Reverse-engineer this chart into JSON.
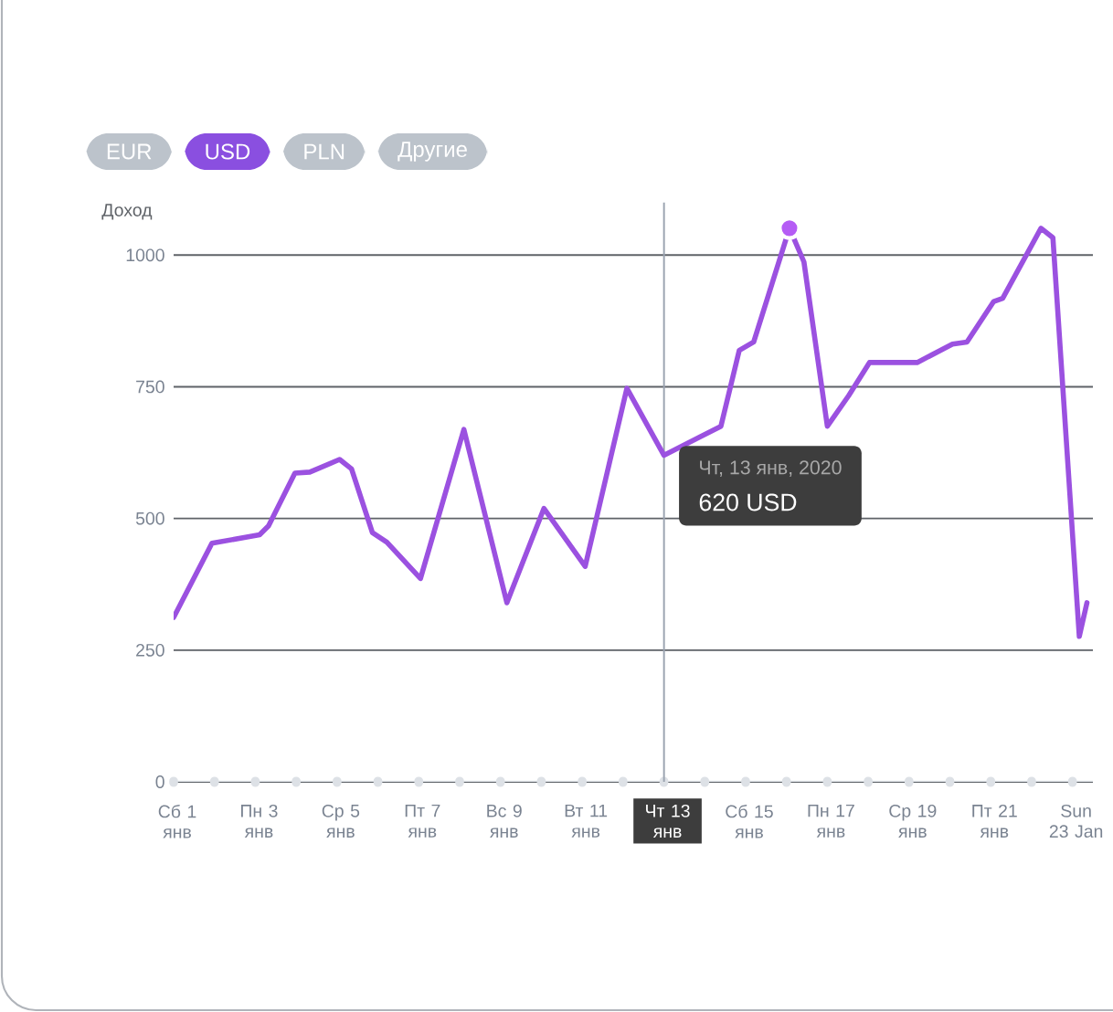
{
  "chart_data": {
    "type": "line",
    "ylabel": "Доход",
    "annotations": [
      "EUR",
      "USD",
      "PLN",
      "Другие",
      {
        "text": "Чт, 13 янв, 2020",
        "x": "2020-01-13",
        "y": 620
      },
      {
        "text": "620 USD",
        "x": "2020-01-13",
        "y": 620
      }
    ],
    "series": [
      {
        "color": "#9b51e0",
        "x": [
          "2020-01-01T00:00",
          "2020-01-01T22:30",
          "2020-01-03T02:30",
          "2020-01-03T07:45",
          "2020-01-03T23:15",
          "2020-01-04T08:00",
          "2020-01-05T01:30",
          "2020-01-05T08:30",
          "2020-01-05T20:45",
          "2020-01-06T05:15",
          "2020-01-07T01:00",
          "2020-01-08T02:30",
          "2020-01-09T03:45",
          "2020-01-10T01:30",
          "2020-01-11T01:45",
          "2020-01-12T02:15",
          "2020-01-13T00:00",
          "2020-01-14T09:30",
          "2020-01-14T20:15",
          "2020-01-15T04:45",
          "2020-01-16T01:45",
          "2020-01-16T10:15",
          "2020-01-17T00:00",
          "2020-01-17T12:30",
          "2020-01-18T00:45",
          "2020-01-19T04:45",
          "2020-01-20T01:30",
          "2020-01-20T10:00",
          "2020-01-21T01:45",
          "2020-01-21T07:00",
          "2020-01-22T05:30",
          "2020-01-22T12:30",
          "2020-01-23T04:00",
          "2020-01-23T08:30"
        ],
        "values": [
          312,
          453,
          469,
          486,
          586,
          588,
          612,
          594,
          473,
          455,
          386,
          669,
          340,
          519,
          409,
          747,
          620,
          675,
          819,
          835,
          1051,
          987,
          675,
          733,
          796,
          796,
          831,
          835,
          912,
          918,
          1051,
          1033,
          276,
          340
        ]
      },
      {
        "type": "scatter",
        "color": "#b55cf5",
        "x": [
          "2020-01-16T01:45"
        ],
        "values": [
          1051
        ]
      }
    ],
    "xlim": [
      "2020-01-01",
      "2020-01-23T12:00"
    ],
    "ylim": [
      0,
      1100
    ],
    "xticks": [
      {
        "value": "2020-01-01",
        "label": "Сб 1 янв"
      },
      {
        "value": "2020-01-02",
        "label": null
      },
      {
        "value": "2020-01-03",
        "label": "Пн 3 янв"
      },
      {
        "value": "2020-01-04",
        "label": null
      },
      {
        "value": "2020-01-05",
        "label": "Ср 5 янв"
      },
      {
        "value": "2020-01-06",
        "label": null
      },
      {
        "value": "2020-01-07",
        "label": "Пт 7 янв"
      },
      {
        "value": "2020-01-08",
        "label": null
      },
      {
        "value": "2020-01-09",
        "label": "Вс 9 янв"
      },
      {
        "value": "2020-01-10",
        "label": null
      },
      {
        "value": "2020-01-11",
        "label": "Вт 11 янв"
      },
      {
        "value": "2020-01-12",
        "label": null
      },
      {
        "value": "2020-01-13",
        "label": "Чт 13 янв"
      },
      {
        "value": "2020-01-14",
        "label": null
      },
      {
        "value": "2020-01-15",
        "label": "Сб 15 янв"
      },
      {
        "value": "2020-01-16",
        "label": null
      },
      {
        "value": "2020-01-17",
        "label": "Пн 17 янв"
      },
      {
        "value": "2020-01-18",
        "label": null
      },
      {
        "value": "2020-01-19",
        "label": "Ср 19 янв"
      },
      {
        "value": "2020-01-20",
        "label": null
      },
      {
        "value": "2020-01-21",
        "label": "Пт 21 янв"
      },
      {
        "value": "2020-01-22",
        "label": null
      },
      {
        "value": "2020-01-23",
        "label": "Sun 23 Jan"
      }
    ],
    "yticks": [
      0,
      250,
      500,
      750,
      1000
    ],
    "grid": "y",
    "ref_lines": [
      {
        "axis": "x",
        "value": "2020-01-13",
        "color": "#9aa3b0"
      }
    ]
  }
}
